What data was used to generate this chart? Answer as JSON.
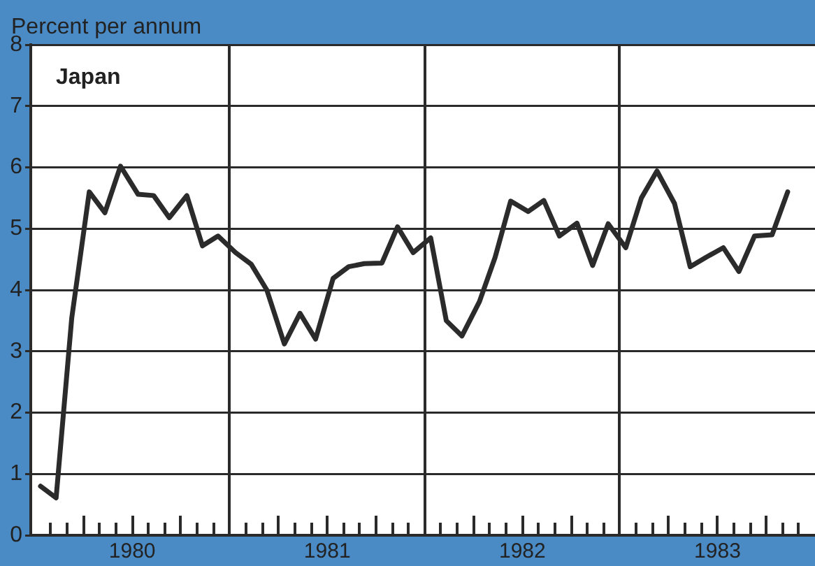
{
  "chart_data": {
    "type": "line",
    "title": "Japan",
    "ylabel": "Percent per annum",
    "x": [
      1980.03,
      1980.11,
      1980.19,
      1980.28,
      1980.36,
      1980.44,
      1980.53,
      1980.61,
      1980.69,
      1980.78,
      1980.86,
      1980.94,
      1981.03,
      1981.11,
      1981.19,
      1981.28,
      1981.36,
      1981.44,
      1981.53,
      1981.61,
      1981.69,
      1981.78,
      1981.86,
      1981.94,
      1982.03,
      1982.11,
      1982.19,
      1982.28,
      1982.36,
      1982.44,
      1982.53,
      1982.61,
      1982.69,
      1982.78,
      1982.86,
      1982.94,
      1983.03,
      1983.11,
      1983.19,
      1983.28,
      1983.36,
      1983.44,
      1983.53,
      1983.61,
      1983.69,
      1983.78,
      1983.86
    ],
    "values": [
      0.8,
      0.61,
      3.54,
      5.6,
      5.26,
      6.02,
      5.56,
      5.54,
      5.18,
      5.54,
      4.72,
      4.88,
      4.61,
      4.42,
      4.0,
      3.12,
      3.62,
      3.2,
      4.19,
      4.38,
      4.43,
      4.44,
      5.03,
      4.61,
      4.85,
      3.5,
      3.25,
      3.81,
      4.53,
      5.45,
      5.28,
      5.46,
      4.88,
      5.09,
      4.4,
      5.08,
      4.69,
      5.5,
      5.94,
      5.41,
      4.38,
      4.53,
      4.69,
      4.3,
      4.88,
      4.9,
      5.6
    ],
    "color": "#2b2b2b",
    "marker": "none",
    "line_style": "solid",
    "grid": true,
    "ylim": [
      0,
      8
    ],
    "yticks": [
      0,
      1,
      2,
      3,
      4,
      5,
      6,
      7,
      8
    ],
    "xlim": [
      1979.98,
      1984
    ],
    "xticks": [
      {
        "value": 1980.083,
        "label": null
      },
      {
        "value": 1980.167,
        "label": null
      },
      {
        "value": 1980.25,
        "label": null
      },
      {
        "value": 1980.333,
        "label": null
      },
      {
        "value": 1980.417,
        "label": null
      },
      {
        "value": 1980.5,
        "label": "1980"
      },
      {
        "value": 1980.583,
        "label": null
      },
      {
        "value": 1980.667,
        "label": null
      },
      {
        "value": 1980.75,
        "label": null
      },
      {
        "value": 1980.833,
        "label": null
      },
      {
        "value": 1980.917,
        "label": null
      },
      {
        "value": 1981,
        "label": null
      },
      {
        "value": 1981.083,
        "label": null
      },
      {
        "value": 1981.167,
        "label": null
      },
      {
        "value": 1981.25,
        "label": null
      },
      {
        "value": 1981.333,
        "label": null
      },
      {
        "value": 1981.417,
        "label": null
      },
      {
        "value": 1981.5,
        "label": "1981"
      },
      {
        "value": 1981.583,
        "label": null
      },
      {
        "value": 1981.667,
        "label": null
      },
      {
        "value": 1981.75,
        "label": null
      },
      {
        "value": 1981.833,
        "label": null
      },
      {
        "value": 1981.917,
        "label": null
      },
      {
        "value": 1982,
        "label": null
      },
      {
        "value": 1982.083,
        "label": null
      },
      {
        "value": 1982.167,
        "label": null
      },
      {
        "value": 1982.25,
        "label": null
      },
      {
        "value": 1982.333,
        "label": null
      },
      {
        "value": 1982.417,
        "label": null
      },
      {
        "value": 1982.5,
        "label": "1982"
      },
      {
        "value": 1982.583,
        "label": null
      },
      {
        "value": 1982.667,
        "label": null
      },
      {
        "value": 1982.75,
        "label": null
      },
      {
        "value": 1982.833,
        "label": null
      },
      {
        "value": 1982.917,
        "label": null
      },
      {
        "value": 1983,
        "label": null
      },
      {
        "value": 1983.083,
        "label": null
      },
      {
        "value": 1983.167,
        "label": null
      },
      {
        "value": 1983.25,
        "label": null
      },
      {
        "value": 1983.333,
        "label": null
      },
      {
        "value": 1983.417,
        "label": null
      },
      {
        "value": 1983.5,
        "label": "1983"
      },
      {
        "value": 1983.583,
        "label": null
      },
      {
        "value": 1983.667,
        "label": null
      },
      {
        "value": 1983.75,
        "label": null
      },
      {
        "value": 1983.833,
        "label": null
      },
      {
        "value": 1983.917,
        "label": null
      }
    ]
  }
}
